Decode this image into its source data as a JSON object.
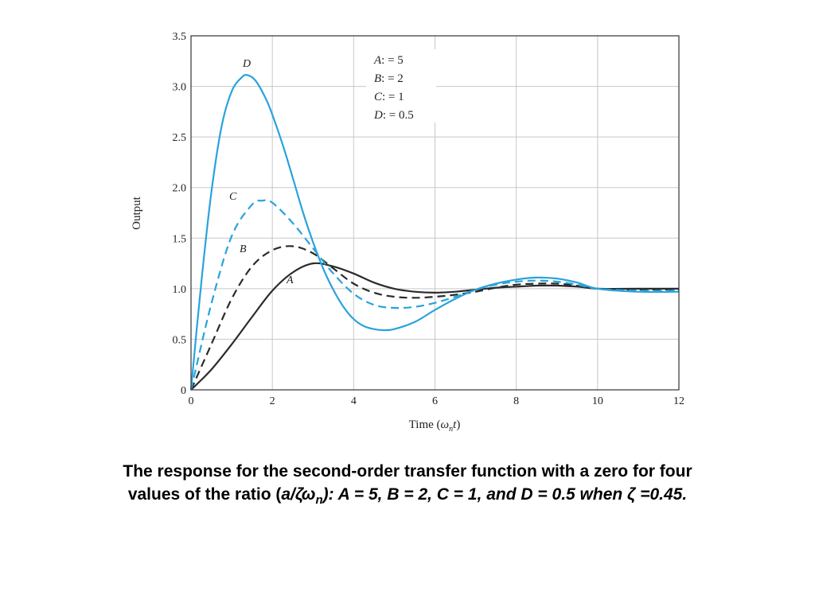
{
  "chart_data": {
    "type": "line",
    "xlabel_prefix": "Time (",
    "xlabel_symbol": "ω",
    "xlabel_sub": "n",
    "xlabel_var": "t",
    "xlabel_suffix": ")",
    "ylabel": "Output",
    "xlim": [
      0,
      12
    ],
    "ylim": [
      0,
      3.5
    ],
    "x_ticks": [
      "0",
      "2",
      "4",
      "6",
      "8",
      "10",
      "12"
    ],
    "y_ticks": [
      "0",
      "0.5",
      "1.0",
      "1.5",
      "2.0",
      "2.5",
      "3.0",
      "3.5"
    ],
    "grid": true,
    "legend_position": "top-center",
    "legend": [
      {
        "key": "A",
        "text": ": = 5"
      },
      {
        "key": "B",
        "text": ": = 2"
      },
      {
        "key": "C",
        "text": ": = 1"
      },
      {
        "key": "D",
        "text": ": = 0.5"
      }
    ],
    "series": [
      {
        "name": "A",
        "color": "#2b2b2b",
        "dash": "solid",
        "x": [
          0,
          0.5,
          1,
          1.5,
          2,
          2.5,
          3,
          3.5,
          4,
          4.5,
          5,
          5.5,
          6,
          6.5,
          7,
          7.5,
          8,
          8.5,
          9,
          9.5,
          10,
          11,
          12
        ],
        "y": [
          0,
          0.2,
          0.45,
          0.72,
          0.98,
          1.16,
          1.25,
          1.22,
          1.15,
          1.06,
          1.0,
          0.97,
          0.96,
          0.97,
          0.99,
          1.01,
          1.02,
          1.03,
          1.03,
          1.02,
          1.0,
          1.0,
          1.0
        ]
      },
      {
        "name": "B",
        "color": "#2b2b2b",
        "dash": "dashed",
        "x": [
          0,
          0.5,
          1,
          1.5,
          2,
          2.5,
          3,
          3.5,
          4,
          4.5,
          5,
          5.5,
          6,
          6.5,
          7,
          7.5,
          8,
          8.5,
          9,
          9.5,
          10,
          11,
          12
        ],
        "y": [
          0,
          0.45,
          0.9,
          1.22,
          1.38,
          1.42,
          1.35,
          1.2,
          1.05,
          0.96,
          0.92,
          0.91,
          0.92,
          0.94,
          0.97,
          1.01,
          1.04,
          1.05,
          1.05,
          1.03,
          1.0,
          0.99,
          0.99
        ]
      },
      {
        "name": "C",
        "color": "#29a3dc",
        "dash": "dashed",
        "x": [
          0,
          0.5,
          1,
          1.5,
          1.75,
          2,
          2.5,
          3,
          3.5,
          4,
          4.5,
          5,
          5.5,
          6,
          6.5,
          7,
          7.5,
          8,
          8.5,
          9,
          9.5,
          10,
          11,
          12
        ],
        "y": [
          0,
          0.85,
          1.52,
          1.83,
          1.87,
          1.85,
          1.65,
          1.4,
          1.15,
          0.95,
          0.84,
          0.81,
          0.82,
          0.86,
          0.92,
          0.99,
          1.04,
          1.07,
          1.08,
          1.07,
          1.04,
          1.0,
          0.98,
          0.98
        ]
      },
      {
        "name": "D",
        "color": "#29a3dc",
        "dash": "solid",
        "x": [
          0,
          0.25,
          0.5,
          0.75,
          1,
          1.25,
          1.4,
          1.6,
          1.85,
          2,
          2.25,
          2.5,
          2.75,
          3,
          3.25,
          3.5,
          3.75,
          4,
          4.25,
          4.5,
          4.75,
          5,
          5.5,
          6,
          6.5,
          7,
          7.5,
          8,
          8.5,
          9,
          9.5,
          10,
          11,
          12
        ],
        "y": [
          0,
          1.05,
          1.95,
          2.6,
          2.95,
          3.09,
          3.11,
          3.05,
          2.87,
          2.72,
          2.43,
          2.1,
          1.76,
          1.46,
          1.2,
          0.99,
          0.82,
          0.7,
          0.63,
          0.6,
          0.59,
          0.6,
          0.67,
          0.79,
          0.9,
          0.99,
          1.05,
          1.09,
          1.11,
          1.1,
          1.06,
          1.0,
          0.97,
          0.97
        ]
      }
    ]
  },
  "caption": {
    "line1": "The response for the second-order transfer function with a zero for four",
    "line2_start": "values of the ratio (",
    "ratio_num": "a/ζω",
    "ratio_sub": "n",
    "line2_end": "): A = 5, B =  2, C = 1, and D =  0.5 when ζ  =0.45."
  }
}
